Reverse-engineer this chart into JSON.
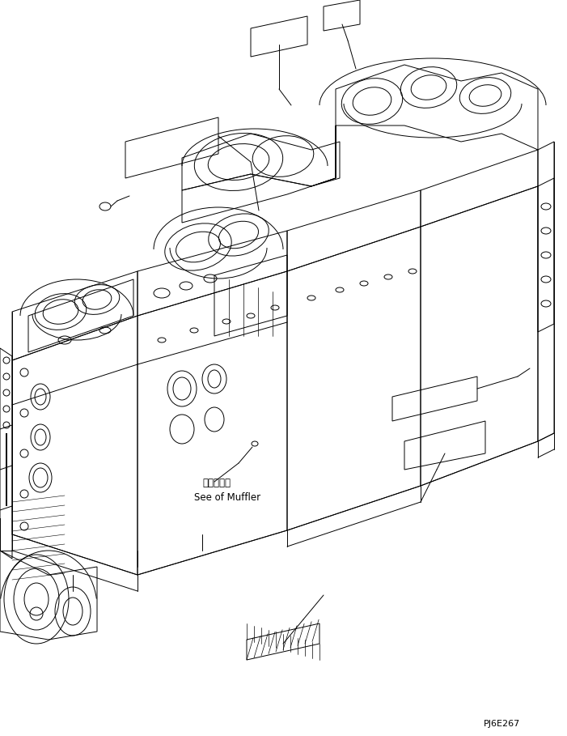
{
  "bg_color": "#ffffff",
  "line_color": "#000000",
  "text_color": "#000000",
  "title_code": "PJ6E267",
  "annotation_jp": "マフラ参照",
  "annotation_en": "See of Muffler",
  "fig_width": 7.01,
  "fig_height": 9.09,
  "dpi": 100,
  "lw": 0.7
}
